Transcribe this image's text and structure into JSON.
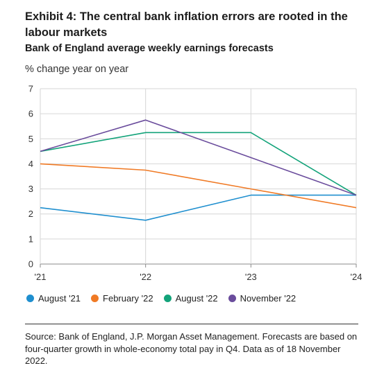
{
  "header": {
    "title": "Exhibit 4: The central bank inflation errors are rooted in the labour markets",
    "subtitle": "Bank of England average weekly earnings forecasts",
    "unit": "% change year on year"
  },
  "chart_data": {
    "type": "line",
    "title": "Bank of England average weekly earnings forecasts",
    "xlabel": "",
    "ylabel": "% change year on year",
    "x": [
      "'21",
      "'22",
      "'23",
      "'24"
    ],
    "ylim": [
      0,
      7
    ],
    "yticks": [
      0,
      1,
      2,
      3,
      4,
      5,
      6,
      7
    ],
    "grid": true,
    "legend": "bottom",
    "series": [
      {
        "name": "August '21",
        "color": "#1f8fcf",
        "values": [
          2.25,
          1.75,
          2.75,
          2.75
        ]
      },
      {
        "name": "February '22",
        "color": "#f07a25",
        "values": [
          4.0,
          3.75,
          3.0,
          2.25
        ]
      },
      {
        "name": "August '22",
        "color": "#13a37a",
        "values": [
          4.5,
          5.25,
          5.25,
          2.75
        ]
      },
      {
        "name": "November '22",
        "color": "#6a4c9c",
        "values": [
          4.5,
          5.75,
          4.25,
          2.75
        ]
      }
    ]
  },
  "footer": {
    "source": "Source: Bank of England, J.P. Morgan Asset Management. Forecasts are based on four-quarter growth in whole-economy total pay in Q4. Data as of 18 November 2022."
  }
}
